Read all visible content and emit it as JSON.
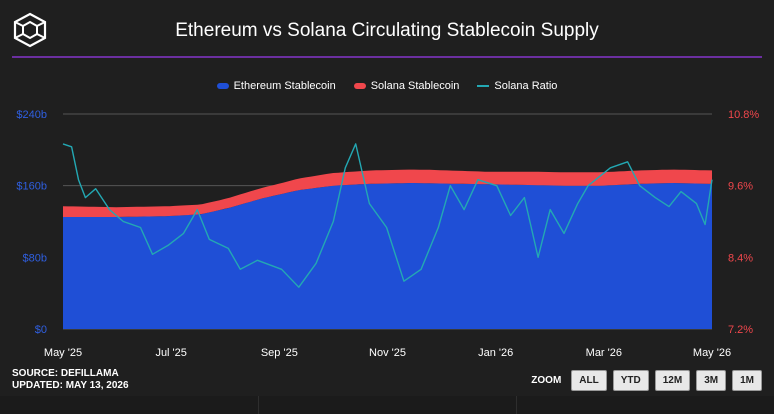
{
  "header": {
    "title": "Ethereum vs Solana Circulating Stablecoin Supply",
    "logo_icon": "cube-logo-icon"
  },
  "legend": [
    {
      "label": "Ethereum Stablecoin",
      "color": "#1f4fd6"
    },
    {
      "label": "Solana Stablecoin",
      "color": "#f0474c"
    },
    {
      "label": "Solana Ratio",
      "color": "#23a8b3"
    }
  ],
  "footer": {
    "source": "SOURCE: DEFILLAMA",
    "updated": "UPDATED: MAY 13, 2026"
  },
  "zoom": {
    "label": "ZOOM",
    "buttons": [
      "ALL",
      "YTD",
      "12M",
      "3M",
      "1M"
    ]
  },
  "chart_data": {
    "type": "area",
    "title": "Ethereum vs Solana Circulating Stablecoin Supply",
    "x_ticks": [
      "May '25",
      "Jul '25",
      "Sep '25",
      "Nov '25",
      "Jan '26",
      "Mar '26",
      "May '26"
    ],
    "x_range": [
      "2025-05-01",
      "2026-05-13"
    ],
    "y_left": {
      "ticks": [
        "$0",
        "$80b",
        "$160b",
        "$240b"
      ],
      "range": [
        0,
        240
      ],
      "unit": "billions USD"
    },
    "y_right": {
      "ticks": [
        "7.2%",
        "8.4%",
        "9.6%",
        "10.8%"
      ],
      "range": [
        7.2,
        10.8
      ],
      "unit": "percent"
    },
    "grid": "horizontal",
    "legend_position": "top-center",
    "series": [
      {
        "name": "Ethereum Stablecoin",
        "type": "area",
        "axis": "left",
        "color": "#1f4fd6",
        "points": [
          [
            "2025-05-01",
            125
          ],
          [
            "2025-06-01",
            125
          ],
          [
            "2025-07-01",
            126
          ],
          [
            "2025-07-20",
            128
          ],
          [
            "2025-08-05",
            135
          ],
          [
            "2025-08-25",
            146
          ],
          [
            "2025-09-15",
            155
          ],
          [
            "2025-10-05",
            160
          ],
          [
            "2025-10-25",
            162
          ],
          [
            "2025-11-20",
            163
          ],
          [
            "2025-12-20",
            162
          ],
          [
            "2026-01-20",
            161
          ],
          [
            "2026-02-15",
            160
          ],
          [
            "2026-03-10",
            160
          ],
          [
            "2026-04-01",
            162
          ],
          [
            "2026-04-20",
            163
          ],
          [
            "2026-05-13",
            162
          ]
        ]
      },
      {
        "name": "Solana Stablecoin",
        "type": "area",
        "axis": "left",
        "color": "#f0474c",
        "points": [
          [
            "2025-05-01",
            12
          ],
          [
            "2025-06-01",
            11
          ],
          [
            "2025-07-01",
            11
          ],
          [
            "2025-08-01",
            11
          ],
          [
            "2025-09-01",
            12
          ],
          [
            "2025-10-01",
            14
          ],
          [
            "2025-11-01",
            15
          ],
          [
            "2025-12-01",
            15
          ],
          [
            "2026-01-01",
            14
          ],
          [
            "2026-02-01",
            15
          ],
          [
            "2026-03-01",
            15
          ],
          [
            "2026-04-01",
            15
          ],
          [
            "2026-05-13",
            15
          ]
        ]
      },
      {
        "name": "Solana Ratio",
        "type": "line",
        "axis": "right",
        "color": "#23a8b3",
        "points": [
          [
            "2025-05-01",
            10.3
          ],
          [
            "2025-05-06",
            10.25
          ],
          [
            "2025-05-10",
            9.7
          ],
          [
            "2025-05-14",
            9.4
          ],
          [
            "2025-05-20",
            9.55
          ],
          [
            "2025-05-28",
            9.2
          ],
          [
            "2025-06-05",
            9.0
          ],
          [
            "2025-06-15",
            8.9
          ],
          [
            "2025-06-22",
            8.45
          ],
          [
            "2025-07-01",
            8.6
          ],
          [
            "2025-07-10",
            8.8
          ],
          [
            "2025-07-18",
            9.2
          ],
          [
            "2025-07-25",
            8.7
          ],
          [
            "2025-08-05",
            8.55
          ],
          [
            "2025-08-12",
            8.2
          ],
          [
            "2025-08-22",
            8.35
          ],
          [
            "2025-09-05",
            8.2
          ],
          [
            "2025-09-15",
            7.9
          ],
          [
            "2025-09-25",
            8.3
          ],
          [
            "2025-10-05",
            9.0
          ],
          [
            "2025-10-12",
            9.9
          ],
          [
            "2025-10-18",
            10.3
          ],
          [
            "2025-10-26",
            9.3
          ],
          [
            "2025-11-05",
            8.9
          ],
          [
            "2025-11-15",
            8.0
          ],
          [
            "2025-11-25",
            8.2
          ],
          [
            "2025-12-05",
            8.9
          ],
          [
            "2025-12-12",
            9.6
          ],
          [
            "2025-12-20",
            9.2
          ],
          [
            "2025-12-28",
            9.7
          ],
          [
            "2026-01-08",
            9.6
          ],
          [
            "2026-01-16",
            9.1
          ],
          [
            "2026-01-24",
            9.4
          ],
          [
            "2026-02-01",
            8.4
          ],
          [
            "2026-02-08",
            9.2
          ],
          [
            "2026-02-16",
            8.8
          ],
          [
            "2026-02-24",
            9.3
          ],
          [
            "2026-03-02",
            9.6
          ],
          [
            "2026-03-15",
            9.9
          ],
          [
            "2026-03-25",
            10.0
          ],
          [
            "2026-04-01",
            9.6
          ],
          [
            "2026-04-10",
            9.4
          ],
          [
            "2026-04-18",
            9.25
          ],
          [
            "2026-04-25",
            9.5
          ],
          [
            "2026-05-04",
            9.3
          ],
          [
            "2026-05-09",
            8.95
          ],
          [
            "2026-05-13",
            9.7
          ]
        ]
      }
    ]
  }
}
